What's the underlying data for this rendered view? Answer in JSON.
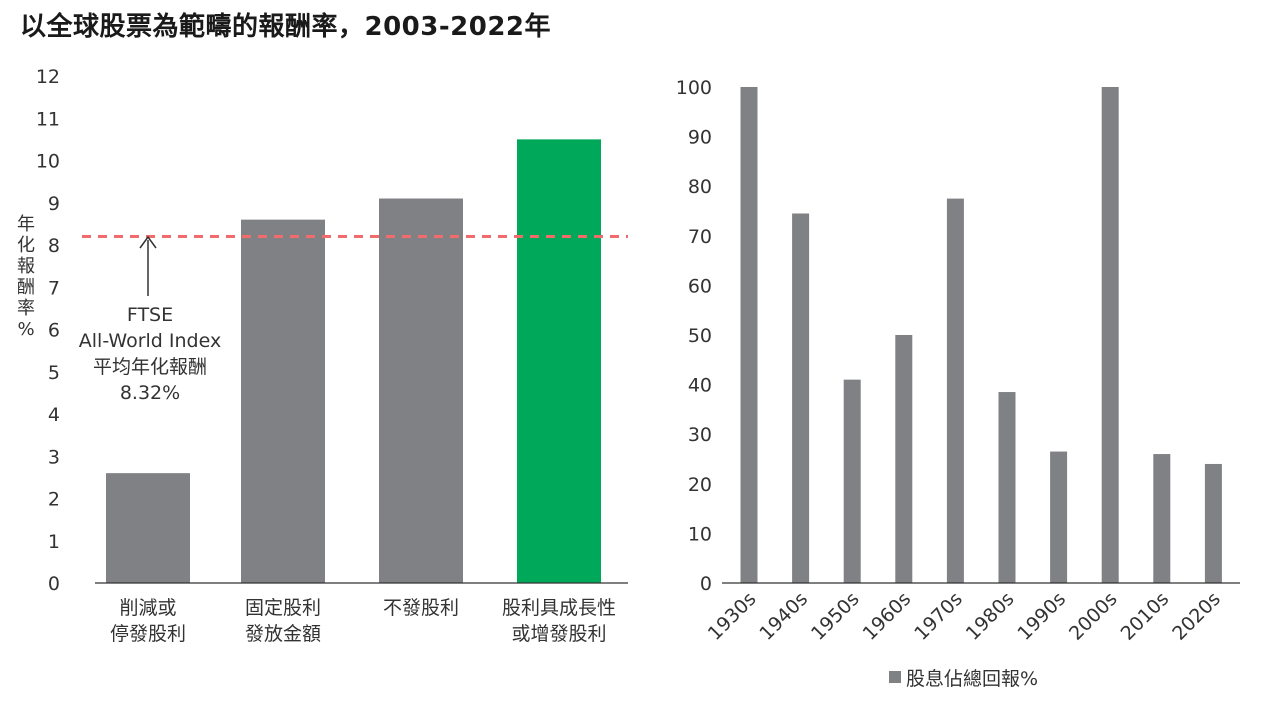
{
  "title": "以全球股票為範疇的報酬率，2003-2022年",
  "chart_data": [
    {
      "type": "bar",
      "title": "以全球股票為範疇的報酬率，2003-2022年",
      "ylabel": "年化報酬率%",
      "ylim": [
        0,
        12
      ],
      "yticks": [
        "0",
        "1",
        "2",
        "3",
        "4",
        "5",
        "6",
        "7",
        "8",
        "9",
        "10",
        "11",
        "12"
      ],
      "categories": [
        [
          "削減或",
          "停發股利"
        ],
        [
          "固定股利",
          "發放金額"
        ],
        [
          "不發股利"
        ],
        [
          "股利具成長性",
          "或增發股利"
        ]
      ],
      "values": [
        2.6,
        8.6,
        9.1,
        10.5
      ],
      "bar_colors": [
        "#808184",
        "#808184",
        "#808184",
        "#00a859"
      ],
      "reference_line": {
        "value": 8.32,
        "color": "#f26b6b",
        "style": "dashed",
        "annotation": [
          "FTSE",
          "All-World Index",
          "平均年化報酬",
          "8.32%"
        ]
      },
      "grid": false
    },
    {
      "type": "bar",
      "ylim": [
        0,
        100
      ],
      "yticks": [
        "0",
        "10",
        "20",
        "30",
        "40",
        "50",
        "60",
        "70",
        "80",
        "90",
        "100"
      ],
      "categories": [
        "1930s",
        "1940s",
        "1950s",
        "1960s",
        "1970s",
        "1980s",
        "1990s",
        "2000s",
        "2010s",
        "2020s"
      ],
      "series": [
        {
          "name": "股息佔總回報%",
          "values": [
            100,
            74.5,
            41,
            50,
            77.5,
            38.5,
            26.5,
            100,
            26,
            24
          ],
          "color": "#808184"
        }
      ],
      "legend": {
        "label": "股息佔總回報%",
        "placement": "bottom-center"
      },
      "grid": false
    }
  ]
}
